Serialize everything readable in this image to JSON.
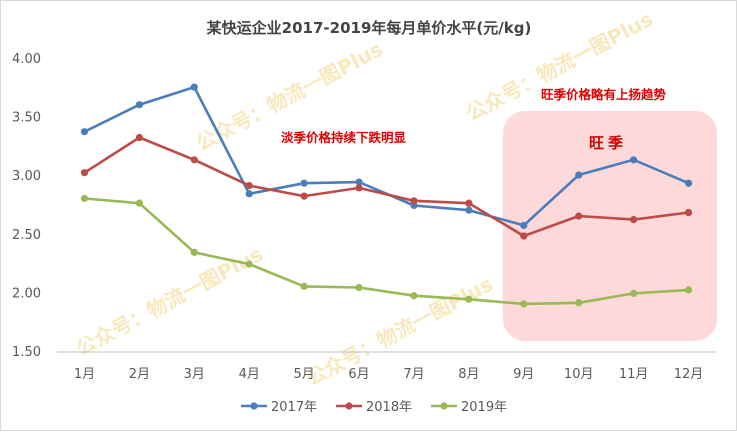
{
  "chart_data": {
    "type": "line",
    "title": "某快运企业2017-2019年每月单价水平(元/kg)",
    "categories": [
      "1月",
      "2月",
      "3月",
      "4月",
      "5月",
      "6月",
      "7月",
      "8月",
      "9月",
      "10月",
      "11月",
      "12月"
    ],
    "ylim": [
      1.5,
      4.0
    ],
    "yticks": [
      "1.50",
      "2.00",
      "2.50",
      "3.00",
      "3.50",
      "4.00"
    ],
    "series": [
      {
        "name": "2017年",
        "color": "#4a7ebb",
        "values": [
          3.38,
          3.61,
          3.76,
          2.85,
          2.94,
          2.95,
          2.75,
          2.71,
          2.58,
          3.01,
          3.14,
          2.94
        ]
      },
      {
        "name": "2018年",
        "color": "#be4b48",
        "values": [
          3.03,
          3.33,
          3.14,
          2.92,
          2.83,
          2.9,
          2.79,
          2.77,
          2.49,
          2.66,
          2.63,
          2.69
        ]
      },
      {
        "name": "2019年",
        "color": "#98b954",
        "values": [
          2.81,
          2.77,
          2.35,
          2.25,
          2.06,
          2.05,
          1.98,
          1.95,
          1.91,
          1.92,
          2.0,
          2.03
        ]
      }
    ],
    "annotations": {
      "off_season": "淡季价格持续下跌明显",
      "peak_note": "旺季价格略有上扬趋势",
      "peak_label": "旺季"
    },
    "grid": false,
    "legend": "bottom"
  },
  "watermark": "公众号：物流一图Plus"
}
